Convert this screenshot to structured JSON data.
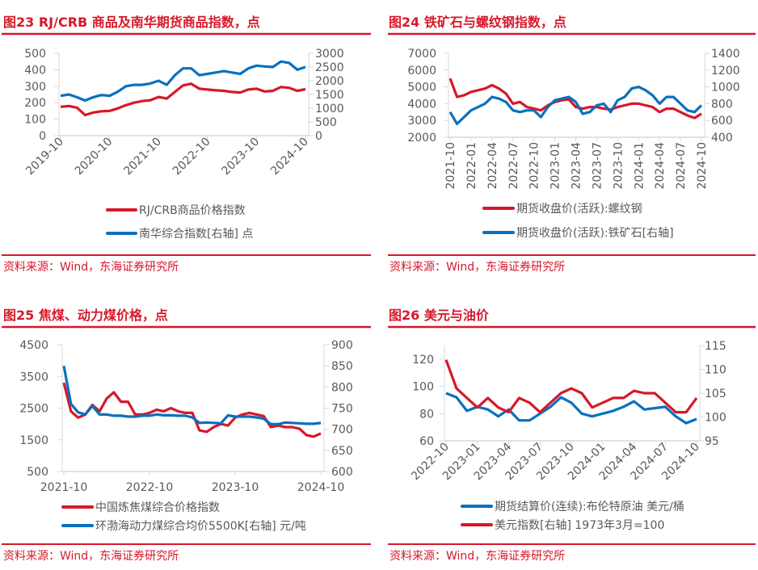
{
  "colors": {
    "accent": "#d7182a",
    "red_series": "#d7182a",
    "blue_series": "#0a70bf",
    "axis": "#d9d9d9"
  },
  "chart_data": [
    {
      "id": "fig23",
      "type": "line",
      "title": "图23   RJ/CRB 商品及南华期货商品指数，点",
      "source": "资料来源：Wind，东海证券研究所",
      "x": [
        "2019-10",
        "2019-12",
        "2020-02",
        "2020-04",
        "2020-06",
        "2020-08",
        "2020-10",
        "2020-12",
        "2021-02",
        "2021-04",
        "2021-06",
        "2021-08",
        "2021-10",
        "2021-12",
        "2022-02",
        "2022-04",
        "2022-06",
        "2022-08",
        "2022-10",
        "2022-12",
        "2023-02",
        "2023-04",
        "2023-06",
        "2023-08",
        "2023-10",
        "2023-12",
        "2024-02",
        "2024-04",
        "2024-06",
        "2024-08",
        "2024-10"
      ],
      "xticks": [
        "2019-10",
        "2020-10",
        "2021-10",
        "2022-10",
        "2023-10",
        "2024-10"
      ],
      "ylim": [
        0,
        500
      ],
      "yticks": [
        "0",
        "100",
        "200",
        "300",
        "400",
        "500"
      ],
      "y2lim": [
        0,
        3000
      ],
      "y2ticks": [
        "0",
        "500",
        "1000",
        "1500",
        "2000",
        "2500",
        "3000"
      ],
      "legend_placement": "bottom",
      "series": [
        {
          "name": "RJ/CRB商品价格指数",
          "axis": "left",
          "color": "#d7182a",
          "values": [
            175,
            180,
            170,
            125,
            140,
            148,
            150,
            165,
            185,
            200,
            210,
            215,
            235,
            225,
            265,
            305,
            315,
            285,
            280,
            275,
            272,
            265,
            262,
            280,
            285,
            268,
            272,
            295,
            290,
            272,
            282
          ]
        },
        {
          "name": "南华综合指数[右轴] 点",
          "axis": "right",
          "color": "#0a70bf",
          "values": [
            1450,
            1500,
            1400,
            1280,
            1400,
            1480,
            1450,
            1600,
            1800,
            1850,
            1850,
            1900,
            2000,
            1850,
            2200,
            2450,
            2450,
            2200,
            2250,
            2300,
            2350,
            2300,
            2250,
            2450,
            2550,
            2520,
            2500,
            2700,
            2650,
            2400,
            2500
          ]
        }
      ]
    },
    {
      "id": "fig24",
      "type": "line",
      "title": "图24   铁矿石与螺纹钢指数，点",
      "source": "资料来源：Wind，东海证券研究所",
      "x": [
        "2021-10",
        "2021-11",
        "2021-12",
        "2022-01",
        "2022-02",
        "2022-03",
        "2022-04",
        "2022-05",
        "2022-06",
        "2022-07",
        "2022-08",
        "2022-09",
        "2022-10",
        "2022-11",
        "2022-12",
        "2023-01",
        "2023-02",
        "2023-03",
        "2023-04",
        "2023-05",
        "2023-06",
        "2023-07",
        "2023-08",
        "2023-09",
        "2023-10",
        "2023-11",
        "2023-12",
        "2024-01",
        "2024-02",
        "2024-03",
        "2024-04",
        "2024-05",
        "2024-06",
        "2024-07",
        "2024-08",
        "2024-09",
        "2024-10"
      ],
      "xticks": [
        "2021-10",
        "2022-01",
        "2022-04",
        "2022-07",
        "2022-10",
        "2023-01",
        "2023-04",
        "2023-07",
        "2023-10",
        "2024-01",
        "2024-04",
        "2024-07",
        "2024-10"
      ],
      "ylim": [
        2000,
        7000
      ],
      "yticks": [
        "2000",
        "3000",
        "4000",
        "5000",
        "6000",
        "7000"
      ],
      "y2lim": [
        400,
        1400
      ],
      "y2ticks": [
        "400",
        "600",
        "800",
        "1000",
        "1200",
        "1400"
      ],
      "legend_placement": "bottom",
      "series": [
        {
          "name": "期货收盘价(活跃):螺纹钢",
          "axis": "left",
          "color": "#d7182a",
          "values": [
            5500,
            4400,
            4500,
            4700,
            4800,
            4900,
            5100,
            4900,
            4600,
            4000,
            4100,
            3800,
            3700,
            3600,
            3900,
            4100,
            4200,
            4250,
            3800,
            3700,
            3800,
            3800,
            3700,
            3650,
            3800,
            3900,
            4000,
            4000,
            3900,
            3800,
            3500,
            3700,
            3700,
            3500,
            3300,
            3150,
            3400
          ]
        },
        {
          "name": "期货收盘价(活跃):铁矿石[右轴]",
          "axis": "right",
          "color": "#0a70bf",
          "values": [
            700,
            560,
            640,
            720,
            760,
            800,
            880,
            860,
            820,
            720,
            700,
            720,
            720,
            640,
            760,
            840,
            860,
            880,
            820,
            680,
            700,
            780,
            800,
            700,
            840,
            880,
            980,
            1000,
            960,
            900,
            800,
            880,
            880,
            800,
            720,
            700,
            780
          ]
        }
      ]
    },
    {
      "id": "fig25",
      "type": "line",
      "title": "图25   焦煤、动力煤价格，点",
      "source": "资料来源：Wind，东海证券研究所",
      "x": [
        "2021-10",
        "2021-11",
        "2021-12",
        "2022-01",
        "2022-02",
        "2022-03",
        "2022-04",
        "2022-05",
        "2022-06",
        "2022-07",
        "2022-08",
        "2022-09",
        "2022-10",
        "2022-11",
        "2022-12",
        "2023-01",
        "2023-02",
        "2023-03",
        "2023-04",
        "2023-05",
        "2023-06",
        "2023-07",
        "2023-08",
        "2023-09",
        "2023-10",
        "2023-11",
        "2023-12",
        "2024-01",
        "2024-02",
        "2024-03",
        "2024-04",
        "2024-05",
        "2024-06",
        "2024-07",
        "2024-08",
        "2024-09",
        "2024-10"
      ],
      "xticks": [
        "2021-10",
        "2022-10",
        "2023-10",
        "2024-10"
      ],
      "ylim": [
        500,
        4500
      ],
      "yticks": [
        "500",
        "1500",
        "2500",
        "3500",
        "4500"
      ],
      "y2lim": [
        600,
        900
      ],
      "y2ticks": [
        "600",
        "650",
        "700",
        "750",
        "800",
        "850",
        "900"
      ],
      "legend_placement": "bottom",
      "series": [
        {
          "name": "中国炼焦煤综合价格指数",
          "axis": "left",
          "color": "#d7182a",
          "values": [
            3300,
            2400,
            2200,
            2300,
            2600,
            2400,
            2800,
            3000,
            2700,
            2700,
            2300,
            2300,
            2350,
            2450,
            2400,
            2500,
            2400,
            2350,
            2350,
            1800,
            1750,
            1900,
            2000,
            1950,
            2200,
            2300,
            2350,
            2300,
            2250,
            1900,
            1950,
            1900,
            1900,
            1850,
            1650,
            1600,
            1700
          ]
        },
        {
          "name": "环渤海动力煤综合均价5500K[右轴] 元/吨",
          "axis": "right",
          "color": "#0a70bf",
          "values": [
            850,
            760,
            740,
            735,
            755,
            735,
            735,
            732,
            732,
            730,
            730,
            732,
            732,
            735,
            733,
            733,
            732,
            732,
            728,
            715,
            716,
            715,
            714,
            733,
            730,
            730,
            730,
            728,
            725,
            712,
            712,
            716,
            715,
            714,
            713,
            713,
            715
          ]
        }
      ]
    },
    {
      "id": "fig26",
      "type": "line",
      "title": "图26   美元与油价",
      "source": "资料来源：Wind，东海证券研究所",
      "x": [
        "2022-10",
        "2022-11",
        "2022-12",
        "2023-01",
        "2023-02",
        "2023-03",
        "2023-04",
        "2023-05",
        "2023-06",
        "2023-07",
        "2023-08",
        "2023-09",
        "2023-10",
        "2023-11",
        "2023-12",
        "2024-01",
        "2024-02",
        "2024-03",
        "2024-04",
        "2024-05",
        "2024-06",
        "2024-07",
        "2024-08",
        "2024-09",
        "2024-10"
      ],
      "xticks": [
        "2022-10",
        "2023-01",
        "2023-04",
        "2023-07",
        "2023-10",
        "2024-01",
        "2024-04",
        "2024-07",
        "2024-10"
      ],
      "ylim": [
        60,
        130
      ],
      "yticks": [
        "60",
        "80",
        "100",
        "120"
      ],
      "y2lim": [
        95,
        115
      ],
      "y2ticks": [
        "95",
        "100",
        "105",
        "110",
        "115"
      ],
      "legend_placement": "bottom",
      "series": [
        {
          "name": "期货结算价(连续):布伦特原油 美元/桶",
          "axis": "left",
          "color": "#0a70bf",
          "values": [
            95,
            92,
            82,
            85,
            83,
            78,
            83,
            75,
            75,
            80,
            85,
            92,
            88,
            80,
            78,
            80,
            82,
            85,
            89,
            83,
            84,
            85,
            78,
            73,
            76
          ]
        },
        {
          "name": "美元指数[右轴] 1973年3月=100",
          "axis": "right",
          "color": "#d7182a",
          "values": [
            112,
            106,
            104,
            102,
            104,
            102,
            101,
            104,
            103,
            101,
            103,
            105,
            106,
            105,
            102,
            103,
            104,
            104,
            105.5,
            105,
            105,
            103,
            101,
            101,
            104
          ]
        }
      ]
    }
  ]
}
